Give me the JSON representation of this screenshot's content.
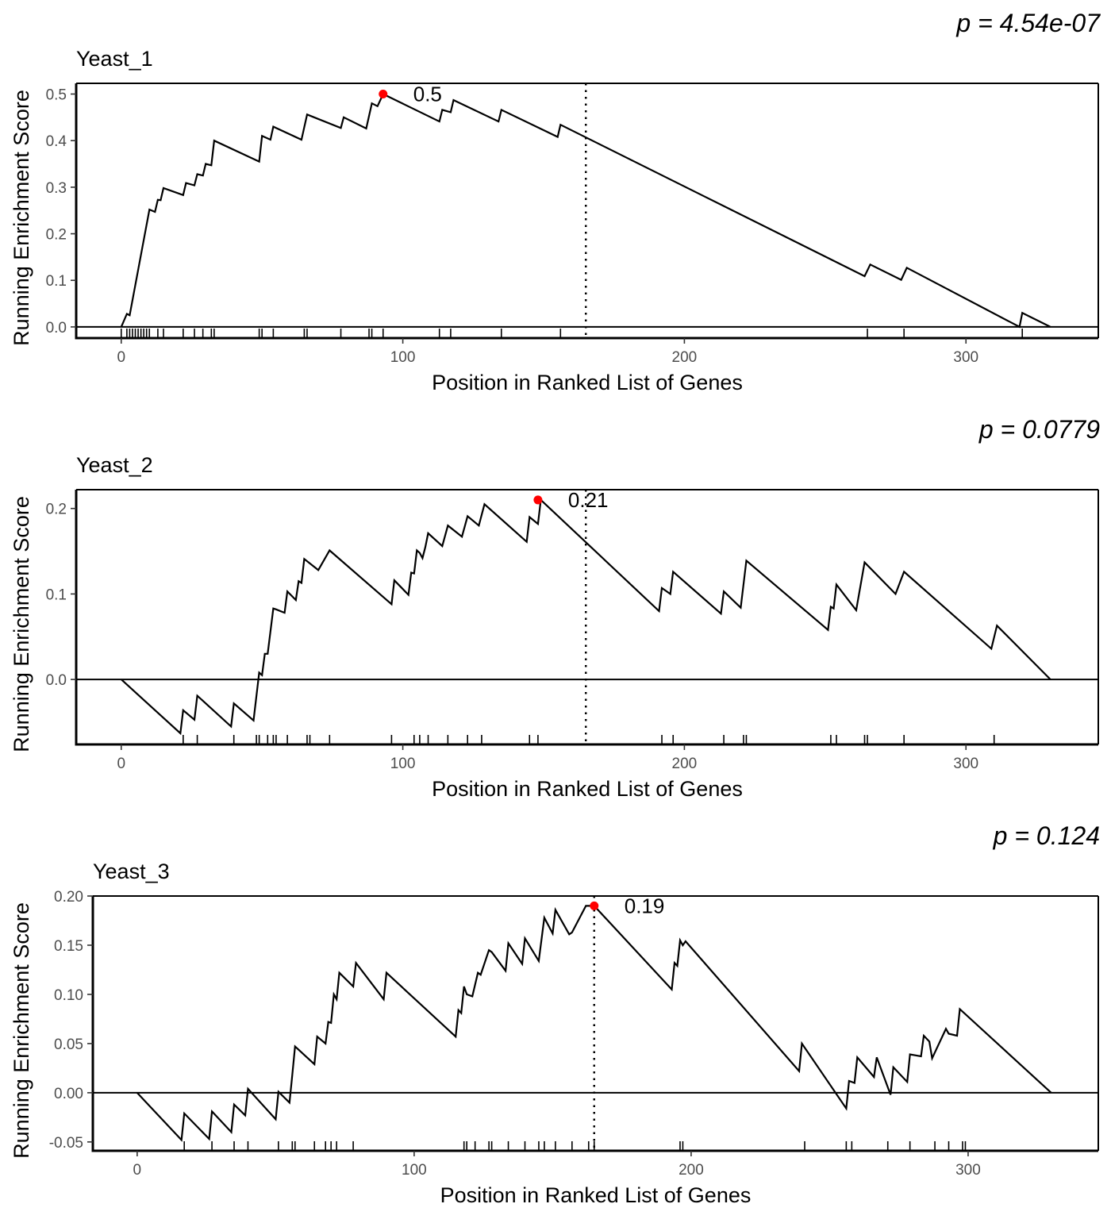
{
  "chart_data": [
    {
      "type": "line",
      "title": "Yeast_1",
      "pvalue_label": "p = 4.54e-07",
      "xlabel": "Position in Ranked List of Genes",
      "ylabel": "Running Enrichment Score",
      "xlim": [
        -16,
        347
      ],
      "ylim": [
        -0.024,
        0.523
      ],
      "x_ticks": [
        0,
        100,
        200,
        300
      ],
      "x_tick_labels": [
        "0",
        "100",
        "200",
        "300"
      ],
      "y_ticks": [
        0.0,
        0.1,
        0.2,
        0.3,
        0.4,
        0.5
      ],
      "y_tick_labels": [
        "0.0",
        "0.1",
        "0.2",
        "0.3",
        "0.4",
        "0.5"
      ],
      "grid": false,
      "peak": {
        "x": 93,
        "y": 0.5,
        "label": "0.5"
      },
      "vline_x": 165,
      "series": [
        {
          "x": [
            0,
            2,
            3,
            10,
            12,
            13,
            14,
            15,
            22,
            23,
            26,
            27,
            29,
            30,
            32,
            33,
            49,
            50,
            53,
            54,
            64,
            66,
            78,
            79,
            87,
            89,
            91,
            93,
            113,
            114,
            117,
            118,
            134,
            135,
            155,
            156,
            264,
            266,
            277,
            279,
            319,
            320,
            330
          ],
          "y": [
            0.0,
            0.028,
            0.025,
            0.252,
            0.247,
            0.273,
            0.272,
            0.298,
            0.283,
            0.309,
            0.304,
            0.328,
            0.325,
            0.35,
            0.347,
            0.4,
            0.355,
            0.41,
            0.402,
            0.43,
            0.402,
            0.456,
            0.427,
            0.45,
            0.426,
            0.48,
            0.474,
            0.5,
            0.441,
            0.466,
            0.461,
            0.487,
            0.441,
            0.466,
            0.408,
            0.434,
            0.109,
            0.134,
            0.101,
            0.127,
            0.0,
            0.03,
            0.0
          ]
        }
      ],
      "hit_positions": [
        0,
        2,
        3,
        4,
        5,
        6,
        7,
        8,
        9,
        10,
        13,
        15,
        22,
        26,
        29,
        32,
        33,
        49,
        50,
        54,
        65,
        66,
        78,
        88,
        89,
        93,
        113,
        117,
        135,
        156,
        265,
        278,
        320
      ]
    },
    {
      "type": "line",
      "title": "Yeast_2",
      "pvalue_label": "p = 0.0779",
      "xlabel": "Position in Ranked List of Genes",
      "ylabel": "Running Enrichment Score",
      "xlim": [
        -16,
        347
      ],
      "ylim": [
        -0.076,
        0.222
      ],
      "x_ticks": [
        0,
        100,
        200,
        300
      ],
      "x_tick_labels": [
        "0",
        "100",
        "200",
        "300"
      ],
      "y_ticks": [
        0.0,
        0.1,
        0.2
      ],
      "y_tick_labels": [
        "0.0",
        "0.1",
        "0.2"
      ],
      "grid": false,
      "peak": {
        "x": 148,
        "y": 0.21,
        "label": "0.21"
      },
      "vline_x": 165,
      "series": [
        {
          "x": [
            0,
            21,
            22,
            26,
            27,
            39,
            40,
            47,
            49,
            50,
            51,
            52,
            54,
            55,
            58,
            59,
            62,
            63,
            64,
            65,
            70,
            74,
            96,
            97,
            102,
            103,
            104,
            105,
            106,
            107,
            108,
            109,
            114,
            116,
            121,
            123,
            127,
            129,
            144,
            145,
            148,
            149,
            191,
            192,
            195,
            196,
            213,
            214,
            220,
            222,
            251,
            252,
            253,
            254,
            261,
            264,
            275,
            278,
            309,
            311,
            330
          ],
          "y": [
            0.0,
            -0.063,
            -0.036,
            -0.047,
            -0.019,
            -0.055,
            -0.028,
            -0.048,
            0.008,
            0.005,
            0.03,
            0.03,
            0.083,
            0.082,
            0.078,
            0.103,
            0.093,
            0.115,
            0.113,
            0.141,
            0.128,
            0.151,
            0.088,
            0.116,
            0.099,
            0.125,
            0.124,
            0.151,
            0.148,
            0.142,
            0.155,
            0.171,
            0.156,
            0.18,
            0.167,
            0.191,
            0.18,
            0.205,
            0.161,
            0.19,
            0.182,
            0.21,
            0.08,
            0.107,
            0.1,
            0.126,
            0.077,
            0.103,
            0.084,
            0.139,
            0.058,
            0.085,
            0.083,
            0.111,
            0.081,
            0.137,
            0.1,
            0.126,
            0.036,
            0.063,
            0.0
          ]
        }
      ],
      "hit_positions": [
        22,
        27,
        40,
        48,
        49,
        52,
        54,
        55,
        59,
        66,
        67,
        74,
        96,
        104,
        106,
        109,
        116,
        123,
        128,
        145,
        148,
        192,
        196,
        214,
        221,
        222,
        252,
        254,
        264,
        265,
        278,
        310
      ]
    },
    {
      "type": "line",
      "title": "Yeast_3",
      "pvalue_label": "p = 0.124",
      "xlabel": "Position in Ranked List of Genes",
      "ylabel": "Running Enrichment Score",
      "xlim": [
        -16,
        347
      ],
      "ylim": [
        -0.059,
        0.2
      ],
      "x_ticks": [
        0,
        100,
        200,
        300
      ],
      "x_tick_labels": [
        "0",
        "100",
        "200",
        "300"
      ],
      "y_ticks": [
        -0.05,
        0.0,
        0.05,
        0.1,
        0.15,
        0.2
      ],
      "y_tick_labels": [
        "-0.05",
        "0.00",
        "0.05",
        "0.10",
        "0.15",
        "0.20"
      ],
      "grid": false,
      "peak": {
        "x": 165,
        "y": 0.19,
        "label": "0.19"
      },
      "vline_x": 165,
      "series": [
        {
          "x": [
            0,
            16,
            17,
            26,
            27,
            34,
            35,
            39,
            40,
            50,
            51,
            55,
            56,
            57,
            64,
            65,
            68,
            69,
            70,
            71,
            72,
            73,
            78,
            79,
            89,
            90,
            115,
            116,
            117,
            118,
            119,
            121,
            123,
            124,
            127,
            128,
            133,
            134,
            139,
            140,
            145,
            147,
            150,
            151,
            156,
            157,
            162,
            165,
            193,
            194,
            195,
            196,
            197,
            198,
            239,
            240,
            256,
            257,
            259,
            260,
            266,
            267,
            272,
            273,
            278,
            279,
            283,
            284,
            286,
            287,
            292,
            293,
            296,
            297,
            330
          ],
          "y": [
            0.0,
            -0.048,
            -0.021,
            -0.047,
            -0.019,
            -0.04,
            -0.012,
            -0.023,
            0.004,
            -0.027,
            0.001,
            -0.01,
            0.018,
            0.047,
            0.029,
            0.057,
            0.05,
            0.072,
            0.071,
            0.1,
            0.095,
            0.122,
            0.108,
            0.132,
            0.095,
            0.122,
            0.057,
            0.084,
            0.081,
            0.108,
            0.1,
            0.098,
            0.122,
            0.12,
            0.145,
            0.143,
            0.124,
            0.152,
            0.131,
            0.157,
            0.134,
            0.178,
            0.162,
            0.186,
            0.161,
            0.163,
            0.19,
            0.19,
            0.105,
            0.132,
            0.129,
            0.155,
            0.15,
            0.154,
            0.022,
            0.05,
            -0.016,
            0.012,
            0.01,
            0.036,
            0.016,
            0.036,
            -0.002,
            0.026,
            0.011,
            0.039,
            0.037,
            0.058,
            0.052,
            0.035,
            0.065,
            0.06,
            0.058,
            0.085,
            0.0
          ]
        }
      ],
      "hit_positions": [
        17,
        27,
        35,
        40,
        51,
        56,
        57,
        64,
        68,
        70,
        72,
        78,
        118,
        119,
        122,
        127,
        128,
        134,
        140,
        145,
        147,
        151,
        157,
        163,
        165,
        196,
        197,
        241,
        256,
        258,
        271,
        279,
        288,
        293,
        298,
        299
      ]
    }
  ]
}
